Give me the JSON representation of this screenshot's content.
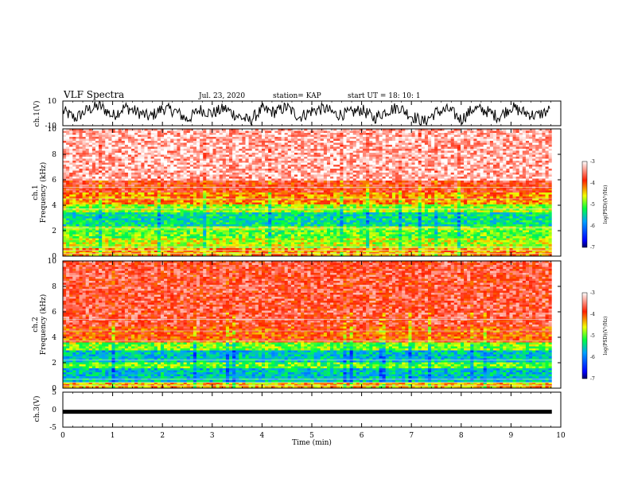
{
  "header": {
    "title": "VLF Spectra",
    "date": "Jul. 23, 2020",
    "station": "station= KAP",
    "start": "start UT = 18: 10: 1"
  },
  "chart_data": [
    {
      "type": "line",
      "panel": "ch1-waveform",
      "ylabel": "ch.1(V)",
      "ylim": [
        -10,
        10
      ],
      "yticks": [
        "10",
        "-10"
      ],
      "xlim": [
        0,
        10
      ],
      "x": [
        0,
        0.25,
        0.5,
        0.75,
        1.0,
        1.25,
        1.5,
        1.75,
        2.0,
        2.25,
        2.5,
        2.75,
        3.0,
        3.25,
        3.5,
        3.75,
        4.0,
        4.25,
        4.5,
        4.75,
        5.0,
        5.25,
        5.5,
        5.75,
        6.0,
        6.25,
        6.5,
        6.75,
        7.0,
        7.25,
        7.5,
        7.75,
        8.0,
        8.25,
        8.5,
        8.75,
        9.0,
        9.25,
        9.5,
        9.8
      ],
      "series": [
        {
          "values": [
            2,
            -4,
            3,
            6,
            -2,
            5,
            1,
            -3,
            4,
            2,
            -5,
            3,
            0,
            4,
            -2,
            -6,
            3,
            1,
            5,
            -3,
            2,
            4,
            -1,
            0,
            3,
            -4,
            2,
            5,
            -2,
            -7,
            1,
            3,
            -5,
            4,
            2,
            -3,
            5,
            1,
            -2,
            3
          ]
        }
      ]
    },
    {
      "type": "heatmap",
      "panel": "ch1-spectrogram",
      "ylabel": "ch.1",
      "ylabel2": "Frequency (kHz)",
      "ylim": [
        0,
        10
      ],
      "yticks": [
        "0",
        "2",
        "4",
        "6",
        "8",
        "10"
      ],
      "xlim": [
        0,
        10
      ],
      "colorbar": {
        "label": "log(PSD)(V²/Hz)",
        "range": [
          -7,
          -3
        ],
        "ticks": [
          "-3",
          "-4",
          "-5",
          "-6",
          "-7"
        ]
      },
      "freq_band_levels": [
        {
          "from": 0,
          "to": 0.6,
          "level": -4.3
        },
        {
          "from": 0.6,
          "to": 1.4,
          "level": -4.7
        },
        {
          "from": 1.4,
          "to": 2.0,
          "level": -5.0
        },
        {
          "from": 2.0,
          "to": 2.4,
          "level": -4.8
        },
        {
          "from": 2.4,
          "to": 3.4,
          "level": -5.4
        },
        {
          "from": 3.4,
          "to": 4.0,
          "level": -4.8
        },
        {
          "from": 4.0,
          "to": 5.0,
          "level": -4.2
        },
        {
          "from": 5.0,
          "to": 6.0,
          "level": -3.8
        },
        {
          "from": 6.0,
          "to": 10,
          "level": -3.3
        }
      ]
    },
    {
      "type": "heatmap",
      "panel": "ch2-spectrogram",
      "ylabel": "ch.2",
      "ylabel2": "Frequency (kHz)",
      "ylim": [
        0,
        10
      ],
      "yticks": [
        "0",
        "2",
        "4",
        "6",
        "8",
        "10"
      ],
      "xlim": [
        0,
        10
      ],
      "colorbar": {
        "label": "log(PSD)(V²/Hz)",
        "range": [
          -7,
          -3
        ],
        "ticks": [
          "-3",
          "-4",
          "-5",
          "-6",
          "-7"
        ]
      },
      "freq_band_levels": [
        {
          "from": 0,
          "to": 0.5,
          "level": -4.4
        },
        {
          "from": 0.5,
          "to": 1.6,
          "level": -5.6
        },
        {
          "from": 1.6,
          "to": 2.0,
          "level": -5.0
        },
        {
          "from": 2.0,
          "to": 3.0,
          "level": -5.6
        },
        {
          "from": 3.0,
          "to": 3.6,
          "level": -4.9
        },
        {
          "from": 3.6,
          "to": 4.8,
          "level": -4.0
        },
        {
          "from": 4.8,
          "to": 10,
          "level": -3.7
        }
      ]
    },
    {
      "type": "line",
      "panel": "ch3-waveform",
      "ylabel": "ch.3(V)",
      "ylim": [
        -5,
        5
      ],
      "yticks": [
        "5",
        "0",
        "-5"
      ],
      "xlim": [
        0,
        10
      ],
      "series": [
        {
          "values": [
            -0.6,
            -0.6
          ]
        }
      ],
      "xlabel": "Time (min)",
      "xticks": [
        "0",
        "1",
        "2",
        "3",
        "4",
        "5",
        "6",
        "7",
        "8",
        "9",
        "10"
      ]
    }
  ]
}
